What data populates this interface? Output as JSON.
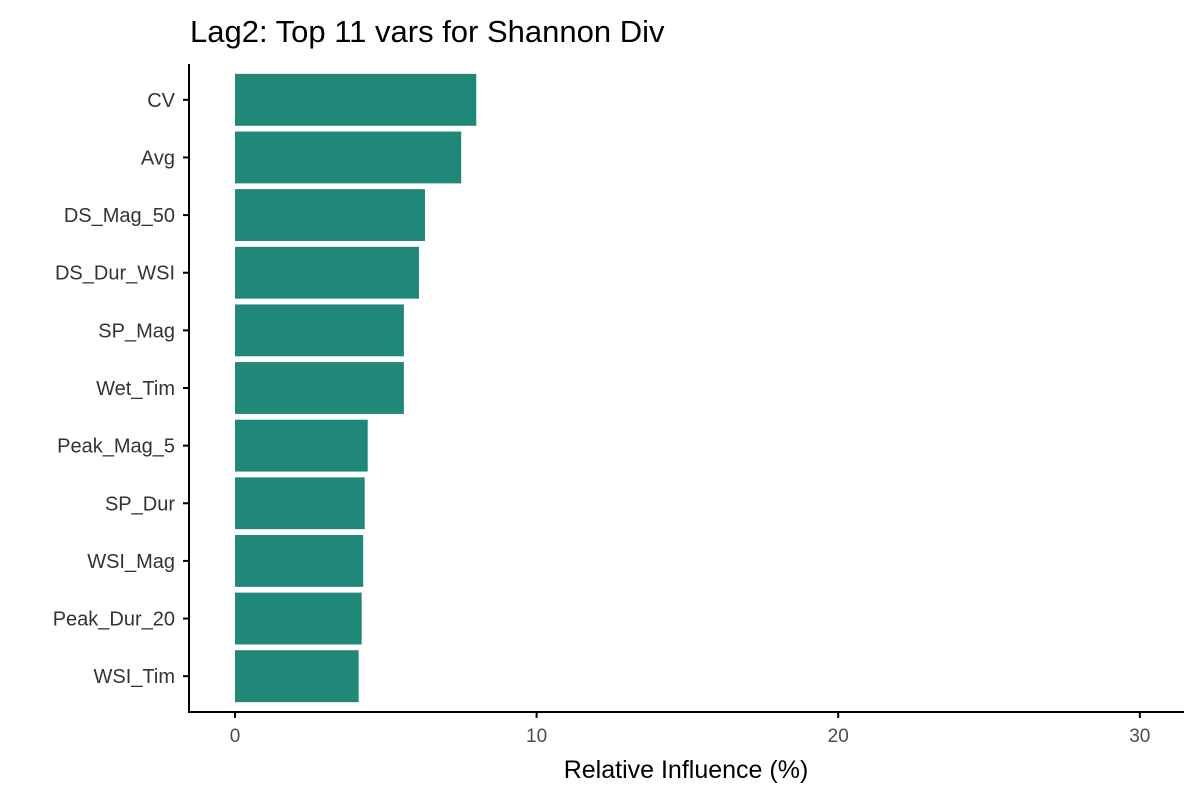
{
  "chart_data": {
    "type": "bar",
    "orientation": "horizontal",
    "title": "Lag2: Top 11 vars for Shannon Div",
    "xlabel": "Relative Influence (%)",
    "ylabel": "",
    "categories": [
      "CV",
      "Avg",
      "DS_Mag_50",
      "DS_Dur_WSI",
      "SP_Mag",
      "Wet_Tim",
      "Peak_Mag_5",
      "SP_Dur",
      "WSI_Mag",
      "Peak_Dur_20",
      "WSI_Tim"
    ],
    "values": [
      8.0,
      7.5,
      6.3,
      6.1,
      5.6,
      5.6,
      4.4,
      4.3,
      4.25,
      4.2,
      4.1
    ],
    "xlim": [
      0,
      31.5
    ],
    "xticks": [
      0,
      10,
      20,
      30
    ],
    "xtick_labels": [
      "0",
      "10",
      "20",
      "30"
    ],
    "bar_color": "#1f8878",
    "grid": false,
    "legend": "none"
  }
}
